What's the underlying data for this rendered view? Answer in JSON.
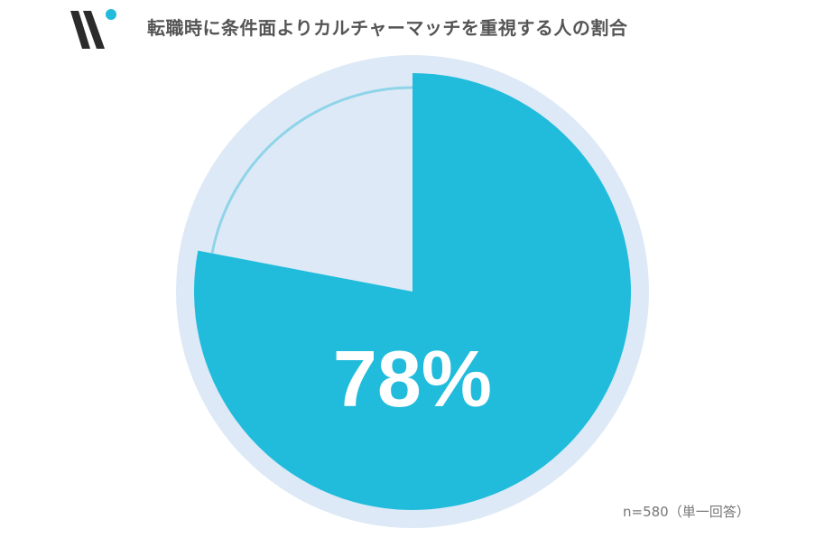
{
  "header": {
    "title": "転職時に条件面よりカルチャーマッチを重視する人の割合"
  },
  "chart_data": {
    "type": "pie",
    "title": "転職時に条件面よりカルチャーマッチを重視する人の割合",
    "slices": [
      {
        "value": 78,
        "color": "#21bcdc",
        "label": "78%"
      },
      {
        "value": 22,
        "color": "#dde9f6"
      }
    ],
    "start": "top",
    "direction": "clockwise",
    "ring_color": "#dde9f6",
    "arc_color": "#8fd4e8"
  },
  "footnote": "n=580（単一回答）",
  "colors": {
    "logo_dark": "#2b2b2b",
    "logo_dot": "#21bcdc"
  }
}
